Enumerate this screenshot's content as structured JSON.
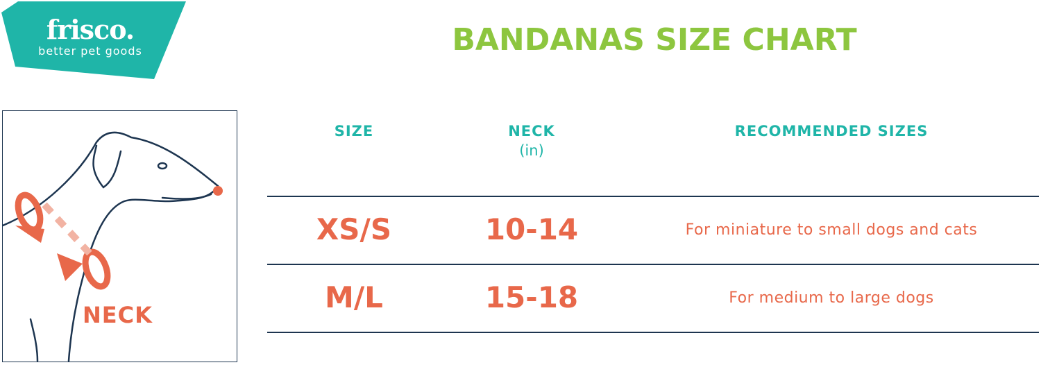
{
  "logo": {
    "name": "frisco.",
    "tagline": "better pet goods",
    "color": "#1fb5a8"
  },
  "title": "BANDANAS SIZE CHART",
  "illustration": {
    "label": "NECK"
  },
  "table": {
    "headers": [
      {
        "label": "SIZE",
        "sub": ""
      },
      {
        "label": "NECK",
        "sub": "(in)"
      },
      {
        "label": "RECOMMENDED SIZES",
        "sub": ""
      }
    ],
    "rows": [
      {
        "size": "XS/S",
        "neck": "10-14",
        "recommended": "For miniature to small dogs and cats"
      },
      {
        "size": "M/L",
        "neck": "15-18",
        "recommended": "For medium to large dogs"
      }
    ]
  },
  "colors": {
    "title": "#8dc63f",
    "header": "#1fb5a8",
    "values": "#e8684a",
    "lines": "#1d3550"
  }
}
